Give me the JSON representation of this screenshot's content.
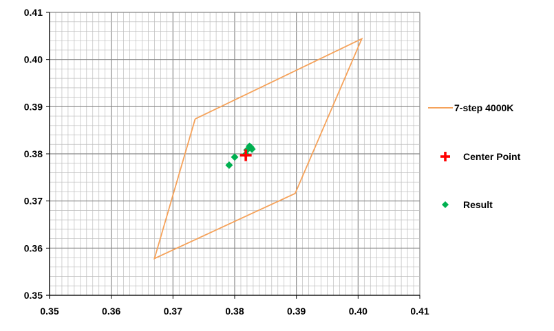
{
  "chart_data": {
    "type": "scatter",
    "title": "",
    "xlabel": "",
    "ylabel": "",
    "xlim": [
      0.35,
      0.41
    ],
    "ylim": [
      0.35,
      0.41
    ],
    "x_ticks": [
      "0.35",
      "0.36",
      "0.37",
      "0.38",
      "0.39",
      "0.40",
      "0.41"
    ],
    "y_ticks": [
      "0.35",
      "0.36",
      "0.37",
      "0.38",
      "0.39",
      "0.40",
      "0.41"
    ],
    "grid": true,
    "legend_position": "right",
    "series": [
      {
        "name": "7-step 4000K",
        "kind": "line",
        "color": "#f5a25a",
        "points": [
          [
            0.3736,
            0.3874
          ],
          [
            0.4006,
            0.4044
          ],
          [
            0.3898,
            0.3716
          ],
          [
            0.367,
            0.3578
          ],
          [
            0.3736,
            0.3874
          ]
        ]
      },
      {
        "name": "Center Point",
        "kind": "marker",
        "marker": "plus",
        "color": "#ff0000",
        "points": [
          [
            0.3818,
            0.3797
          ]
        ]
      },
      {
        "name": "Result",
        "kind": "marker",
        "marker": "diamond",
        "color": "#00b050",
        "points": [
          [
            0.3791,
            0.3776
          ],
          [
            0.38,
            0.3793
          ],
          [
            0.382,
            0.3808
          ],
          [
            0.3824,
            0.3816
          ],
          [
            0.3826,
            0.3814
          ],
          [
            0.3828,
            0.381
          ],
          [
            0.3818,
            0.3799
          ]
        ]
      }
    ]
  }
}
